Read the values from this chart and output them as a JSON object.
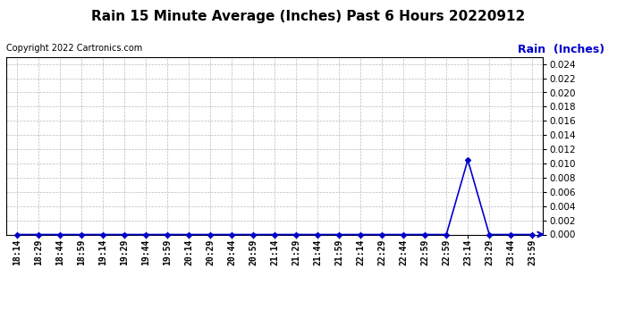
{
  "title": "Rain 15 Minute Average (Inches) Past 6 Hours 20220912",
  "copyright": "Copyright 2022 Cartronics.com",
  "legend_label": "Rain  (Inches)",
  "line_color": "#0000cc",
  "background_color": "#ffffff",
  "grid_color": "#bbbbbb",
  "x_labels": [
    "18:14",
    "18:29",
    "18:44",
    "18:59",
    "19:14",
    "19:29",
    "19:44",
    "19:59",
    "20:14",
    "20:29",
    "20:44",
    "20:59",
    "21:14",
    "21:29",
    "21:44",
    "21:59",
    "22:14",
    "22:29",
    "22:44",
    "22:59",
    "22:59",
    "23:14",
    "23:29",
    "23:44",
    "23:59"
  ],
  "y_values": [
    0.0,
    0.0,
    0.0,
    0.0,
    0.0,
    0.0,
    0.0,
    0.0,
    0.0,
    0.0,
    0.0,
    0.0,
    0.0,
    0.0,
    0.0,
    0.0,
    0.0,
    0.0,
    0.0,
    0.0,
    0.0,
    0.0105,
    0.0,
    0.0,
    0.0
  ],
  "ylim": [
    0.0,
    0.025
  ],
  "yticks": [
    0.0,
    0.002,
    0.004,
    0.006,
    0.008,
    0.01,
    0.012,
    0.014,
    0.016,
    0.018,
    0.02,
    0.022,
    0.024
  ],
  "marker": "D",
  "marker_size": 3,
  "line_width": 1.2,
  "title_fontsize": 11,
  "copyright_fontsize": 7,
  "legend_fontsize": 9,
  "tick_fontsize": 7.5,
  "xtick_fontsize": 7
}
